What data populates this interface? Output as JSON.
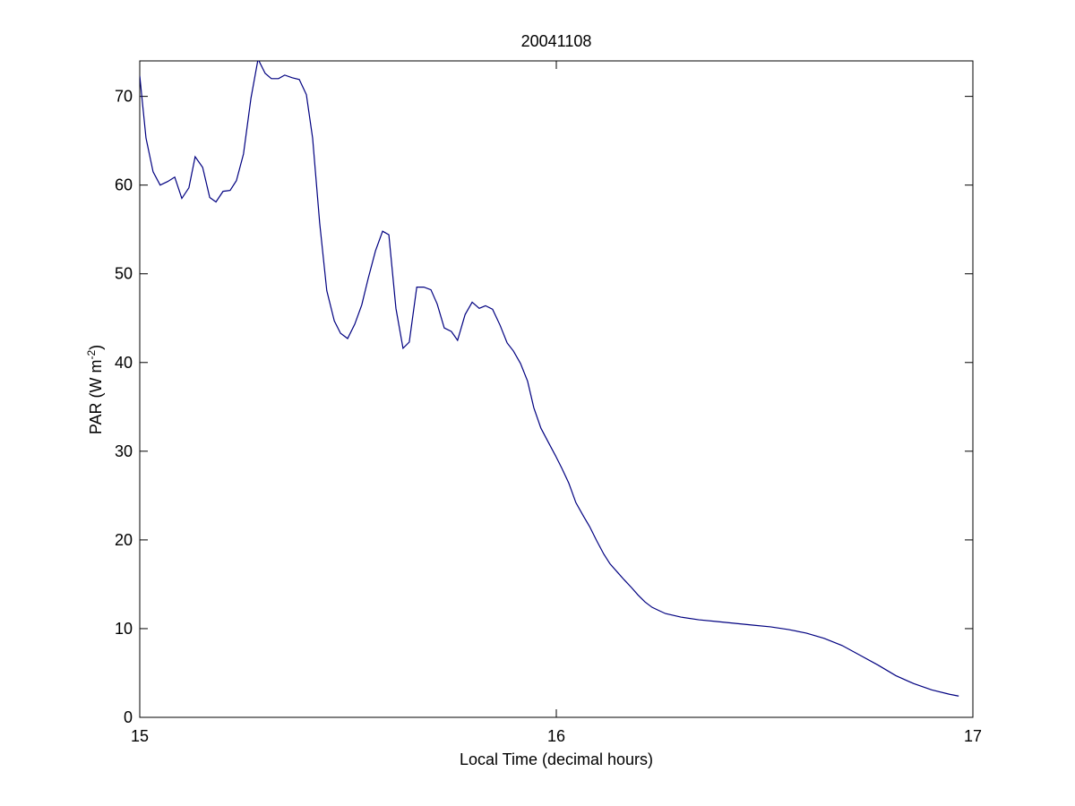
{
  "chart_data": {
    "type": "line",
    "title": "20041108",
    "xlabel": "Local Time (decimal hours)",
    "ylabel": {
      "text": "PAR (W m",
      "superscript": "-2",
      "suffix": ")"
    },
    "xlim": [
      15,
      17
    ],
    "xticks": [
      15,
      16,
      17
    ],
    "ylim": [
      0,
      74
    ],
    "yticks": [
      0,
      10,
      20,
      30,
      40,
      50,
      60,
      70
    ],
    "grid": false,
    "series": [
      {
        "color": "#000080",
        "x": [
          15.0,
          15.015,
          15.032,
          15.049,
          15.067,
          15.084,
          15.101,
          15.118,
          15.133,
          15.151,
          15.168,
          15.183,
          15.2,
          15.217,
          15.232,
          15.249,
          15.267,
          15.284,
          15.301,
          15.316,
          15.333,
          15.348,
          15.366,
          15.383,
          15.4,
          15.415,
          15.432,
          15.449,
          15.467,
          15.482,
          15.499,
          15.516,
          15.533,
          15.548,
          15.566,
          15.583,
          15.598,
          15.615,
          15.632,
          15.647,
          15.665,
          15.682,
          15.699,
          15.714,
          15.731,
          15.748,
          15.763,
          15.781,
          15.798,
          15.815,
          15.83,
          15.847,
          15.865,
          15.882,
          15.897,
          15.914,
          15.931,
          15.946,
          15.963,
          15.981,
          15.998,
          16.013,
          16.03,
          16.047,
          16.065,
          16.08,
          16.097,
          16.114,
          16.129,
          16.146,
          16.163,
          16.181,
          16.196,
          16.213,
          16.23,
          16.248,
          16.262,
          16.299,
          16.342,
          16.385,
          16.428,
          16.471,
          16.514,
          16.557,
          16.6,
          16.643,
          16.686,
          16.729,
          16.772,
          16.815,
          16.858,
          16.901,
          16.944,
          16.966
        ],
        "values": [
          72.3,
          65.3,
          61.5,
          60.0,
          60.4,
          60.9,
          58.5,
          59.7,
          63.2,
          62.0,
          58.6,
          58.1,
          59.3,
          59.4,
          60.5,
          63.5,
          69.8,
          74.2,
          72.6,
          72.0,
          72.0,
          72.4,
          72.1,
          71.9,
          70.2,
          65.3,
          55.7,
          48.1,
          44.7,
          43.3,
          42.7,
          44.3,
          46.5,
          49.4,
          52.6,
          54.8,
          54.4,
          46.1,
          41.6,
          42.3,
          48.5,
          48.5,
          48.2,
          46.6,
          43.9,
          43.5,
          42.5,
          45.4,
          46.8,
          46.1,
          46.4,
          46.0,
          44.2,
          42.2,
          41.3,
          39.9,
          37.9,
          34.9,
          32.6,
          31.0,
          29.5,
          28.1,
          26.4,
          24.2,
          22.7,
          21.5,
          19.9,
          18.4,
          17.3,
          16.4,
          15.5,
          14.6,
          13.8,
          13.0,
          12.4,
          12.0,
          11.7,
          11.3,
          11.0,
          10.8,
          10.6,
          10.4,
          10.2,
          9.9,
          9.5,
          8.9,
          8.1,
          7.0,
          5.9,
          4.7,
          3.8,
          3.1,
          2.6,
          2.4
        ]
      }
    ]
  }
}
